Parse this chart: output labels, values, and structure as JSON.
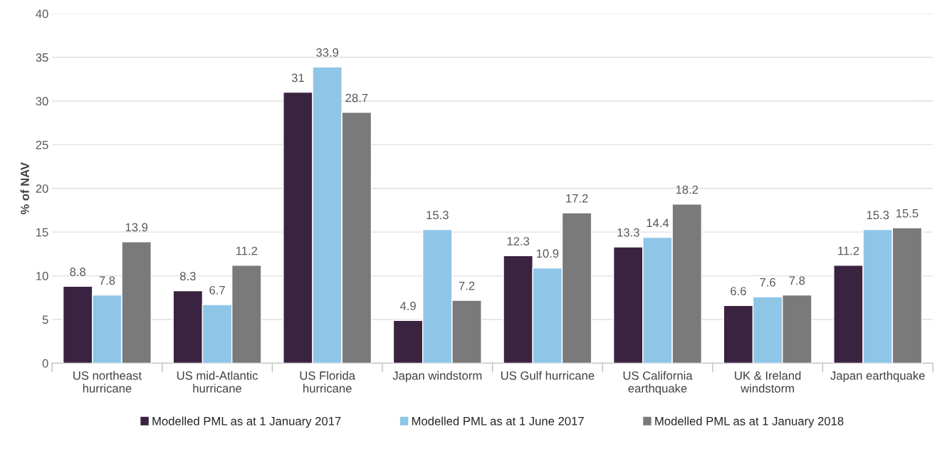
{
  "chart_data": {
    "type": "bar",
    "ylabel": "% of NAV",
    "categories": [
      "US northeast\nhurricane",
      "US mid-Atlantic\nhurricane",
      "US Florida\nhurricane",
      "Japan windstorm",
      "US Gulf hurricane",
      "US California\nearthquake",
      "UK & Ireland\nwindstorm",
      "Japan earthquake"
    ],
    "series": [
      {
        "name": "Modelled PML as at 1 January 2017",
        "color": "#3a2340",
        "values": [
          8.8,
          8.3,
          31,
          4.9,
          12.3,
          13.3,
          6.6,
          11.2
        ]
      },
      {
        "name": "Modelled PML as at 1 June 2017",
        "color": "#8fc6e8",
        "values": [
          7.8,
          6.7,
          33.9,
          15.3,
          10.9,
          14.4,
          7.6,
          15.3
        ]
      },
      {
        "name": "Modelled PML as at 1 January 2018",
        "color": "#7a7a7a",
        "values": [
          13.9,
          11.2,
          28.7,
          7.2,
          17.2,
          18.2,
          7.8,
          15.5
        ]
      }
    ],
    "ylim": [
      0,
      40
    ],
    "yticks": [
      0,
      5,
      10,
      15,
      20,
      25,
      30,
      35,
      40
    ],
    "grid": "y",
    "legend": "bottom",
    "data_labels": true
  }
}
